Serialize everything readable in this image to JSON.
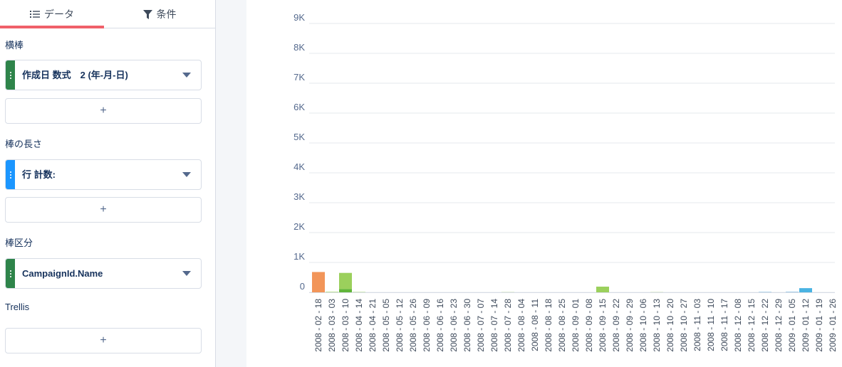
{
  "tabs": {
    "data_label": "データ",
    "filter_label": "条件"
  },
  "sections": {
    "bars_label": "横棒",
    "length_label": "棒の長さ",
    "split_label": "棒区分",
    "trellis_label": "Trellis"
  },
  "fields": {
    "bars_field": "作成日 数式　2 (年-月-日)",
    "length_field": "行 計数:",
    "split_field": "CampaignId.Name",
    "add_label": "+"
  },
  "colors": {
    "accent_tab": "#f0606a",
    "grip_bars": "#2e844a",
    "grip_length": "#1b96ff",
    "grip_split": "#2e844a"
  },
  "chart_data": {
    "type": "bar",
    "stacked": true,
    "ylim": [
      0,
      9000
    ],
    "yticks": [
      "0",
      "1K",
      "2K",
      "3K",
      "4K",
      "5K",
      "6K",
      "7K",
      "8K",
      "9K"
    ],
    "grid": true,
    "categories": [
      "2008 - 02 - 18",
      "2008 - 03 - 03",
      "2008 - 03 - 10",
      "2008 - 04 - 14",
      "2008 - 04 - 21",
      "2008 - 05 - 05",
      "2008 - 05 - 12",
      "2008 - 05 - 26",
      "2008 - 06 - 09",
      "2008 - 06 - 16",
      "2008 - 06 - 23",
      "2008 - 06 - 30",
      "2008 - 07 - 07",
      "2008 - 07 - 14",
      "2008 - 07 - 28",
      "2008 - 08 - 04",
      "2008 - 08 - 11",
      "2008 - 08 - 18",
      "2008 - 08 - 25",
      "2008 - 09 - 01",
      "2008 - 09 - 08",
      "2008 - 09 - 15",
      "2008 - 09 - 22",
      "2008 - 09 - 29",
      "2008 - 10 - 06",
      "2008 - 10 - 13",
      "2008 - 10 - 20",
      "2008 - 10 - 27",
      "2008 - 11 - 03",
      "2008 - 11 - 10",
      "2008 - 11 - 17",
      "2008 - 12 - 08",
      "2008 - 12 - 15",
      "2008 - 12 - 22",
      "2008 - 12 - 29",
      "2009 - 01 - 05",
      "2009 - 01 - 12",
      "2009 - 01 - 19",
      "2009 - 01 - 26"
    ],
    "series": [
      {
        "color": "#f29559",
        "values": [
          680,
          0,
          0,
          0,
          0,
          0,
          0,
          0,
          0,
          0,
          0,
          0,
          0,
          0,
          0,
          0,
          0,
          0,
          0,
          0,
          0,
          0,
          0,
          0,
          0,
          0,
          0,
          0,
          0,
          0,
          0,
          0,
          0,
          0,
          0,
          0,
          0,
          0,
          0
        ]
      },
      {
        "color": "#61b53a",
        "values": [
          0,
          0,
          110,
          0,
          0,
          0,
          0,
          0,
          0,
          0,
          0,
          0,
          0,
          0,
          0,
          0,
          0,
          0,
          0,
          0,
          0,
          0,
          0,
          0,
          0,
          0,
          0,
          0,
          0,
          0,
          0,
          0,
          0,
          0,
          0,
          0,
          0,
          0,
          0
        ]
      },
      {
        "color": "#9bd05c",
        "values": [
          0,
          15,
          540,
          10,
          0,
          0,
          0,
          0,
          0,
          0,
          0,
          0,
          0,
          0,
          5,
          0,
          0,
          0,
          0,
          0,
          0,
          190,
          0,
          0,
          0,
          5,
          0,
          0,
          0,
          0,
          0,
          0,
          0,
          0,
          0,
          0,
          0,
          0,
          0
        ]
      },
      {
        "color": "#a9cfe9",
        "values": [
          0,
          0,
          0,
          0,
          0,
          0,
          0,
          0,
          0,
          0,
          0,
          0,
          0,
          0,
          0,
          0,
          0,
          0,
          0,
          0,
          0,
          0,
          0,
          0,
          0,
          0,
          0,
          0,
          0,
          0,
          0,
          0,
          0,
          20,
          0,
          25,
          0,
          0,
          0
        ]
      },
      {
        "color": "#4ab3e2",
        "values": [
          0,
          0,
          0,
          0,
          0,
          0,
          0,
          0,
          0,
          0,
          0,
          0,
          0,
          0,
          0,
          0,
          0,
          0,
          0,
          0,
          0,
          0,
          0,
          0,
          0,
          0,
          0,
          0,
          0,
          0,
          0,
          0,
          0,
          0,
          0,
          0,
          140,
          0,
          0
        ]
      }
    ]
  }
}
